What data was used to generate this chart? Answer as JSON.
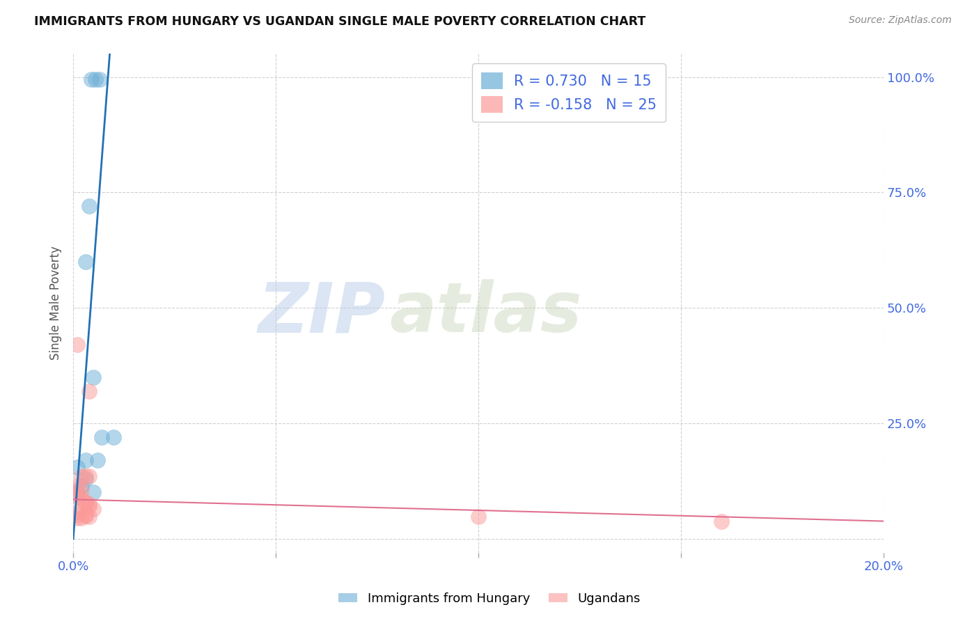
{
  "title": "IMMIGRANTS FROM HUNGARY VS UGANDAN SINGLE MALE POVERTY CORRELATION CHART",
  "source": "Source: ZipAtlas.com",
  "tick_color": "#4169e1",
  "ylabel": "Single Male Poverty",
  "xlim": [
    0.0,
    0.2
  ],
  "ylim": [
    -0.03,
    1.05
  ],
  "x_ticks": [
    0.0,
    0.05,
    0.1,
    0.15,
    0.2
  ],
  "x_tick_labels": [
    "0.0%",
    "",
    "",
    "",
    "20.0%"
  ],
  "y_ticks": [
    0.0,
    0.25,
    0.5,
    0.75,
    1.0
  ],
  "y_tick_labels_right": [
    "",
    "25.0%",
    "50.0%",
    "75.0%",
    "100.0%"
  ],
  "blue_points": [
    [
      0.0045,
      0.995
    ],
    [
      0.0055,
      0.995
    ],
    [
      0.0065,
      0.995
    ],
    [
      0.004,
      0.72
    ],
    [
      0.003,
      0.6
    ],
    [
      0.005,
      0.35
    ],
    [
      0.007,
      0.22
    ],
    [
      0.01,
      0.22
    ],
    [
      0.003,
      0.17
    ],
    [
      0.006,
      0.17
    ],
    [
      0.001,
      0.155
    ],
    [
      0.003,
      0.13
    ],
    [
      0.002,
      0.115
    ],
    [
      0.001,
      0.1
    ],
    [
      0.005,
      0.1
    ]
  ],
  "pink_points": [
    [
      0.001,
      0.42
    ],
    [
      0.004,
      0.32
    ],
    [
      0.002,
      0.135
    ],
    [
      0.003,
      0.135
    ],
    [
      0.004,
      0.135
    ],
    [
      0.001,
      0.115
    ],
    [
      0.002,
      0.105
    ],
    [
      0.001,
      0.105
    ],
    [
      0.001,
      0.095
    ],
    [
      0.001,
      0.09
    ],
    [
      0.002,
      0.085
    ],
    [
      0.003,
      0.08
    ],
    [
      0.003,
      0.075
    ],
    [
      0.004,
      0.075
    ],
    [
      0.004,
      0.07
    ],
    [
      0.005,
      0.065
    ],
    [
      0.001,
      0.058
    ],
    [
      0.001,
      0.053
    ],
    [
      0.003,
      0.053
    ],
    [
      0.003,
      0.05
    ],
    [
      0.004,
      0.048
    ],
    [
      0.001,
      0.045
    ],
    [
      0.002,
      0.045
    ],
    [
      0.1,
      0.048
    ],
    [
      0.16,
      0.038
    ]
  ],
  "blue_R": 0.73,
  "blue_N": 15,
  "pink_R": -0.158,
  "pink_N": 25,
  "blue_color": "#6baed6",
  "pink_color": "#fb9a99",
  "blue_line_color": "#2171b5",
  "pink_line_color": "#e07090",
  "blue_line_x": [
    0.0,
    0.009
  ],
  "blue_line_y": [
    0.0,
    1.05
  ],
  "pink_line_x": [
    0.0,
    0.2
  ],
  "pink_line_y": [
    0.085,
    0.038
  ],
  "watermark_zip": "ZIP",
  "watermark_atlas": "atlas",
  "background_color": "#ffffff",
  "grid_color": "#d0d0d0"
}
